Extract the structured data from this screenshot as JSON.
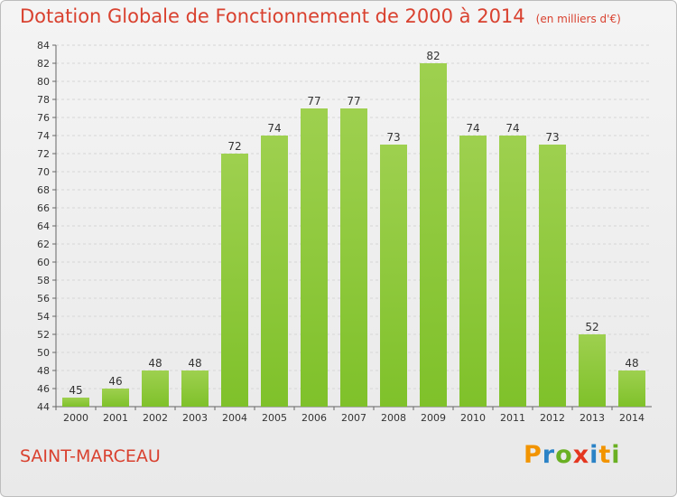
{
  "chart_data": {
    "type": "bar",
    "title": "Dotation Globale de Fonctionnement de 2000 à 2014",
    "unit_note": "(en milliers d'€)",
    "categories": [
      "2000",
      "2001",
      "2002",
      "2003",
      "2004",
      "2005",
      "2006",
      "2007",
      "2008",
      "2009",
      "2010",
      "2011",
      "2012",
      "2013",
      "2014"
    ],
    "values": [
      45,
      46,
      48,
      48,
      72,
      74,
      77,
      77,
      73,
      82,
      74,
      74,
      73,
      52,
      48
    ],
    "ylim": [
      44,
      84
    ],
    "yticks": [
      44,
      46,
      48,
      50,
      52,
      54,
      56,
      58,
      60,
      62,
      64,
      66,
      68,
      70,
      72,
      74,
      76,
      78,
      80,
      82,
      84
    ],
    "grid": true,
    "bar_color": "#7fc12a"
  },
  "footer": {
    "place_name": "SAINT-MARCEAU",
    "brand": [
      "P",
      "r",
      "o",
      "x",
      "i",
      "t",
      "i"
    ],
    "brand_colors": [
      "#f29400",
      "#2b83c6",
      "#6ab023",
      "#e4361f",
      "#2b83c6",
      "#f29400",
      "#6ab023"
    ]
  }
}
